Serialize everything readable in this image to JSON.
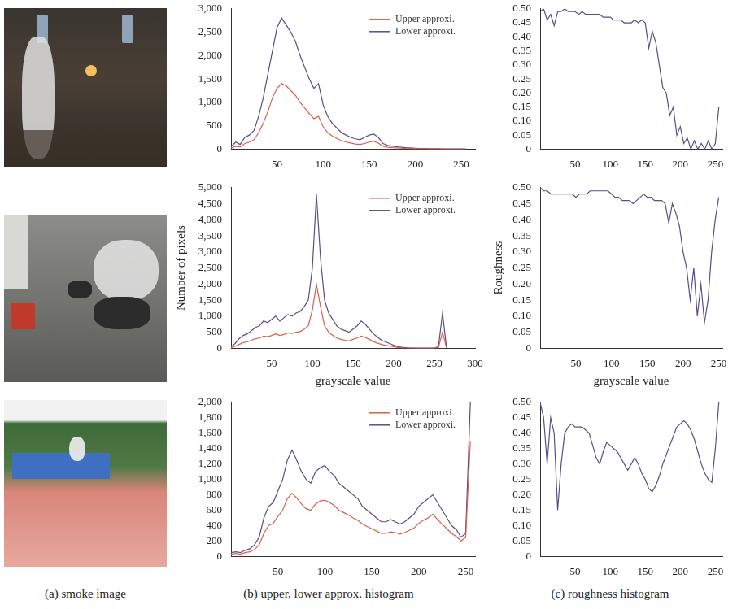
{
  "captions": [
    "(a) smoke image",
    "(b) upper, lower approx. histogram",
    "(c) roughness histogram"
  ],
  "chart_data": [
    {
      "type": "line",
      "grid": false,
      "legend": "upper right",
      "x": [
        0,
        5,
        10,
        15,
        20,
        25,
        30,
        35,
        40,
        45,
        50,
        55,
        60,
        65,
        70,
        75,
        80,
        85,
        90,
        95,
        100,
        105,
        110,
        115,
        120,
        125,
        130,
        135,
        140,
        145,
        150,
        155,
        160,
        165,
        170,
        175,
        180,
        185,
        190,
        195,
        200,
        205,
        210,
        215,
        220,
        225,
        230,
        235,
        240,
        245,
        250,
        255
      ],
      "xlim": [
        0,
        265
      ],
      "xticks": [
        50,
        100,
        150,
        200,
        250
      ],
      "ylim": [
        0,
        3000
      ],
      "yticks": [
        0,
        500,
        {
          "value": 1000,
          "label": "1,000"
        },
        {
          "value": 1500,
          "label": "1,500"
        },
        {
          "value": 2000,
          "label": "2,000"
        },
        {
          "value": 2500,
          "label": "2,500"
        },
        {
          "value": 3000,
          "label": "3,000"
        }
      ],
      "series": [
        {
          "name": "Upper approxi.",
          "color": "#d9604a",
          "values": [
            20,
            60,
            50,
            120,
            150,
            200,
            350,
            550,
            800,
            1100,
            1300,
            1400,
            1350,
            1250,
            1150,
            1000,
            880,
            760,
            650,
            700,
            480,
            350,
            280,
            230,
            180,
            150,
            130,
            110,
            100,
            120,
            150,
            170,
            130,
            60,
            40,
            30,
            25,
            20,
            15,
            12,
            10,
            8,
            8,
            5,
            5,
            5,
            3,
            3,
            3,
            3,
            3,
            3
          ]
        },
        {
          "name": "Lower approxi.",
          "color": "#5a4e86",
          "values": [
            50,
            150,
            100,
            250,
            300,
            400,
            700,
            1100,
            1600,
            2100,
            2600,
            2800,
            2650,
            2500,
            2300,
            2000,
            1750,
            1500,
            1300,
            1400,
            950,
            700,
            550,
            450,
            350,
            300,
            250,
            220,
            200,
            250,
            300,
            320,
            250,
            120,
            80,
            60,
            50,
            40,
            30,
            25,
            20,
            15,
            15,
            10,
            10,
            10,
            5,
            5,
            5,
            5,
            5,
            5
          ]
        }
      ]
    },
    {
      "type": "line",
      "grid": false,
      "x": [
        0,
        5,
        10,
        15,
        20,
        25,
        30,
        35,
        40,
        45,
        50,
        55,
        60,
        65,
        70,
        75,
        80,
        85,
        90,
        95,
        100,
        105,
        110,
        115,
        120,
        125,
        130,
        135,
        140,
        145,
        150,
        155,
        160,
        165,
        170,
        175,
        180,
        185,
        190,
        195,
        200,
        205,
        210,
        215,
        220,
        225,
        230,
        235,
        240,
        245,
        250,
        255
      ],
      "xlim": [
        0,
        260
      ],
      "xticks": [
        50,
        100,
        150,
        200,
        250
      ],
      "ylim": [
        0,
        0.5
      ],
      "yticks": [
        0,
        0.05,
        {
          "value": 0.1,
          "label": "0.10"
        },
        0.15,
        {
          "value": 0.2,
          "label": "0.20"
        },
        0.25,
        {
          "value": 0.3,
          "label": "0.30"
        },
        0.35,
        {
          "value": 0.4,
          "label": "0.40"
        },
        0.45,
        {
          "value": 0.5,
          "label": "0.50"
        }
      ],
      "series": [
        {
          "color": "#5a4e86",
          "values": [
            0.49,
            0.5,
            0.46,
            0.48,
            0.44,
            0.49,
            0.49,
            0.5,
            0.49,
            0.49,
            0.49,
            0.48,
            0.49,
            0.48,
            0.48,
            0.48,
            0.48,
            0.48,
            0.47,
            0.47,
            0.47,
            0.46,
            0.46,
            0.46,
            0.45,
            0.45,
            0.45,
            0.46,
            0.45,
            0.46,
            0.45,
            0.36,
            0.42,
            0.38,
            0.3,
            0.22,
            0.2,
            0.12,
            0.15,
            0.05,
            0.08,
            0.02,
            0.04,
            0,
            0.03,
            0,
            0.02,
            0,
            0.03,
            0,
            0.02,
            0.15
          ]
        }
      ]
    },
    {
      "type": "line",
      "grid": false,
      "legend": "upper right",
      "xlabel": "grayscale value",
      "ylabel": "Number of pixels",
      "x": [
        0,
        5,
        10,
        15,
        20,
        25,
        30,
        35,
        40,
        45,
        50,
        55,
        60,
        65,
        70,
        75,
        80,
        85,
        90,
        95,
        100,
        105,
        110,
        115,
        120,
        125,
        130,
        135,
        140,
        145,
        150,
        155,
        160,
        165,
        170,
        175,
        180,
        185,
        190,
        195,
        200,
        205,
        210,
        215,
        220,
        225,
        230,
        235,
        240,
        245,
        250,
        255,
        260,
        265
      ],
      "xlim": [
        0,
        300
      ],
      "xticks": [
        50,
        100,
        150,
        200,
        250,
        300
      ],
      "ylim": [
        0,
        5000
      ],
      "yticks": [
        0,
        500,
        {
          "value": 1000,
          "label": "1,000"
        },
        {
          "value": 1500,
          "label": "1,500"
        },
        {
          "value": 2000,
          "label": "2,000"
        },
        {
          "value": 2500,
          "label": "2,500"
        },
        {
          "value": 3000,
          "label": "3,000"
        },
        {
          "value": 3500,
          "label": "3,500"
        },
        {
          "value": 4000,
          "label": "4,000"
        },
        {
          "value": 4500,
          "label": "4,500"
        },
        {
          "value": 5000,
          "label": "5,000"
        }
      ],
      "series": [
        {
          "name": "Upper approxi.",
          "color": "#d9604a",
          "values": [
            20,
            60,
            120,
            180,
            200,
            250,
            300,
            320,
            380,
            360,
            400,
            450,
            400,
            430,
            480,
            460,
            500,
            520,
            600,
            700,
            1200,
            2000,
            1300,
            700,
            500,
            400,
            320,
            280,
            250,
            230,
            280,
            320,
            380,
            340,
            280,
            210,
            160,
            120,
            90,
            70,
            50,
            25,
            15,
            10,
            5,
            5,
            3,
            3,
            3,
            3,
            5,
            25,
            500,
            0
          ]
        },
        {
          "name": "Lower approxi.",
          "color": "#5a4e86",
          "values": [
            50,
            150,
            300,
            400,
            450,
            550,
            650,
            700,
            850,
            800,
            900,
            1000,
            850,
            950,
            1050,
            1000,
            1100,
            1150,
            1300,
            1500,
            2500,
            4800,
            2800,
            1500,
            1100,
            900,
            700,
            600,
            550,
            500,
            600,
            700,
            850,
            750,
            600,
            450,
            350,
            250,
            200,
            150,
            100,
            50,
            30,
            20,
            10,
            10,
            5,
            5,
            5,
            5,
            10,
            50,
            1100,
            0
          ]
        }
      ]
    },
    {
      "type": "line",
      "grid": false,
      "xlabel": "grayscale value",
      "ylabel": "Roughness",
      "x": [
        0,
        5,
        10,
        15,
        20,
        25,
        30,
        35,
        40,
        45,
        50,
        55,
        60,
        65,
        70,
        75,
        80,
        85,
        90,
        95,
        100,
        105,
        110,
        115,
        120,
        125,
        130,
        135,
        140,
        145,
        150,
        155,
        160,
        165,
        170,
        175,
        180,
        185,
        190,
        195,
        200,
        205,
        210,
        215,
        220,
        225,
        230,
        235,
        240,
        245,
        250
      ],
      "xlim": [
        0,
        255
      ],
      "xticks": [
        50,
        100,
        150,
        200,
        250
      ],
      "ylim": [
        0,
        0.5
      ],
      "yticks": [
        0,
        0.05,
        {
          "value": 0.1,
          "label": "0.10"
        },
        0.15,
        {
          "value": 0.2,
          "label": "0.20"
        },
        0.25,
        {
          "value": 0.3,
          "label": "0.30"
        },
        0.35,
        {
          "value": 0.4,
          "label": "0.40"
        },
        0.45,
        {
          "value": 0.5,
          "label": "0.50"
        }
      ],
      "series": [
        {
          "color": "#5a4e86",
          "values": [
            0.5,
            0.49,
            0.49,
            0.48,
            0.48,
            0.48,
            0.48,
            0.48,
            0.48,
            0.48,
            0.47,
            0.48,
            0.48,
            0.48,
            0.49,
            0.49,
            0.49,
            0.49,
            0.49,
            0.49,
            0.48,
            0.47,
            0.47,
            0.46,
            0.46,
            0.46,
            0.45,
            0.46,
            0.47,
            0.48,
            0.47,
            0.47,
            0.46,
            0.46,
            0.46,
            0.45,
            0.39,
            0.45,
            0.42,
            0.38,
            0.3,
            0.25,
            0.15,
            0.25,
            0.1,
            0.2,
            0.08,
            0.15,
            0.3,
            0.4,
            0.47
          ]
        }
      ]
    },
    {
      "type": "line",
      "grid": false,
      "legend": "upper right",
      "x": [
        0,
        5,
        10,
        15,
        20,
        25,
        30,
        35,
        40,
        45,
        50,
        55,
        60,
        65,
        70,
        75,
        80,
        85,
        90,
        95,
        100,
        105,
        110,
        115,
        120,
        125,
        130,
        135,
        140,
        145,
        150,
        155,
        160,
        165,
        170,
        175,
        180,
        185,
        190,
        195,
        200,
        205,
        210,
        215,
        220,
        225,
        230,
        235,
        240,
        245,
        250,
        255
      ],
      "xlim": [
        0,
        260
      ],
      "xticks": [
        50,
        100,
        150,
        200,
        250
      ],
      "ylim": [
        0,
        2000
      ],
      "yticks": [
        0,
        200,
        400,
        600,
        800,
        {
          "value": 1000,
          "label": "1,000"
        },
        {
          "value": 1200,
          "label": "1,200"
        },
        {
          "value": 1400,
          "label": "1,400"
        },
        {
          "value": 1600,
          "label": "1,600"
        },
        {
          "value": 1800,
          "label": "1,800"
        },
        {
          "value": 2000,
          "label": "2,000"
        }
      ],
      "series": [
        {
          "name": "Upper approxi.",
          "color": "#d9604a",
          "values": [
            30,
            40,
            30,
            50,
            60,
            90,
            150,
            300,
            400,
            430,
            520,
            600,
            750,
            820,
            760,
            680,
            620,
            600,
            680,
            720,
            730,
            700,
            660,
            600,
            570,
            540,
            500,
            470,
            420,
            390,
            360,
            330,
            300,
            300,
            320,
            310,
            290,
            310,
            340,
            370,
            430,
            470,
            500,
            550,
            480,
            420,
            360,
            300,
            260,
            200,
            250,
            1500
          ]
        },
        {
          "name": "Lower approxi.",
          "color": "#5a4e86",
          "values": [
            50,
            60,
            50,
            80,
            100,
            150,
            250,
            500,
            650,
            700,
            850,
            1000,
            1250,
            1380,
            1250,
            1100,
            1000,
            950,
            1100,
            1150,
            1180,
            1100,
            1050,
            950,
            900,
            850,
            800,
            750,
            650,
            600,
            550,
            500,
            450,
            450,
            480,
            450,
            420,
            450,
            500,
            550,
            650,
            700,
            750,
            800,
            700,
            600,
            500,
            400,
            350,
            250,
            300,
            2000
          ]
        }
      ]
    },
    {
      "type": "line",
      "grid": false,
      "x": [
        0,
        5,
        10,
        15,
        20,
        25,
        30,
        35,
        40,
        45,
        50,
        55,
        60,
        65,
        70,
        75,
        80,
        85,
        90,
        95,
        100,
        105,
        110,
        115,
        120,
        125,
        130,
        135,
        140,
        145,
        150,
        155,
        160,
        165,
        170,
        175,
        180,
        185,
        190,
        195,
        200,
        205,
        210,
        215,
        220,
        225,
        230,
        235,
        240,
        245,
        250,
        255
      ],
      "xlim": [
        0,
        260
      ],
      "xticks": [
        50,
        100,
        150,
        200,
        250
      ],
      "ylim": [
        0,
        0.5
      ],
      "yticks": [
        0,
        0.05,
        {
          "value": 0.1,
          "label": "0.10"
        },
        0.15,
        {
          "value": 0.2,
          "label": "0.20"
        },
        0.25,
        {
          "value": 0.3,
          "label": "0.30"
        },
        0.35,
        {
          "value": 0.4,
          "label": "0.40"
        },
        0.45,
        {
          "value": 0.5,
          "label": "0.50"
        }
      ],
      "series": [
        {
          "color": "#5a4e86",
          "values": [
            0.5,
            0.45,
            0.3,
            0.45,
            0.4,
            0.15,
            0.3,
            0.4,
            0.42,
            0.43,
            0.42,
            0.42,
            0.42,
            0.41,
            0.4,
            0.36,
            0.32,
            0.3,
            0.34,
            0.37,
            0.36,
            0.35,
            0.34,
            0.32,
            0.3,
            0.28,
            0.3,
            0.32,
            0.3,
            0.27,
            0.25,
            0.22,
            0.21,
            0.23,
            0.26,
            0.3,
            0.33,
            0.36,
            0.39,
            0.42,
            0.43,
            0.44,
            0.43,
            0.41,
            0.38,
            0.34,
            0.3,
            0.27,
            0.25,
            0.24,
            0.35,
            0.5
          ]
        }
      ]
    }
  ]
}
